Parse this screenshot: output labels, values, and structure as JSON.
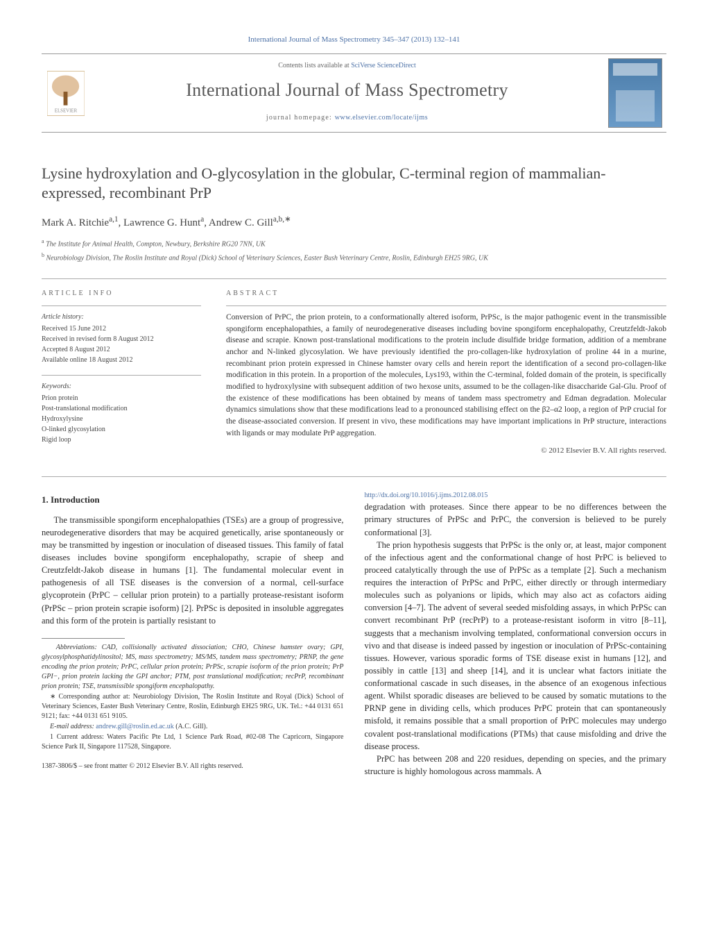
{
  "top_citation": "International Journal of Mass Spectrometry 345–347 (2013) 132–141",
  "header": {
    "contents_prefix": "Contents lists available at ",
    "contents_link": "SciVerse ScienceDirect",
    "journal": "International Journal of Mass Spectrometry",
    "homepage_prefix": "journal homepage: ",
    "homepage_url": "www.elsevier.com/locate/ijms"
  },
  "title": "Lysine hydroxylation and O-glycosylation in the globular, C-terminal region of mammalian-expressed, recombinant PrP",
  "authors_html": "Mark A. Ritchie<sup>a,1</sup>, Lawrence G. Hunt<sup>a</sup>, Andrew C. Gill<sup>a,b,∗</sup>",
  "affiliations": [
    "a The Institute for Animal Health, Compton, Newbury, Berkshire RG20 7NN, UK",
    "b Neurobiology Division, The Roslin Institute and Royal (Dick) School of Veterinary Sciences, Easter Bush Veterinary Centre, Roslin, Edinburgh EH25 9RG, UK"
  ],
  "article_info_label": "ARTICLE INFO",
  "abstract_label": "ABSTRACT",
  "history": {
    "head": "Article history:",
    "lines": [
      "Received 15 June 2012",
      "Received in revised form 8 August 2012",
      "Accepted 8 August 2012",
      "Available online 18 August 2012"
    ]
  },
  "keywords": {
    "head": "Keywords:",
    "items": [
      "Prion protein",
      "Post-translational modification",
      "Hydroxylysine",
      "O-linked glycosylation",
      "Rigid loop"
    ]
  },
  "abstract": "Conversion of PrPC, the prion protein, to a conformationally altered isoform, PrPSc, is the major pathogenic event in the transmissible spongiform encephalopathies, a family of neurodegenerative diseases including bovine spongiform encephalopathy, Creutzfeldt-Jakob disease and scrapie. Known post-translational modifications to the protein include disulfide bridge formation, addition of a membrane anchor and N-linked glycosylation. We have previously identified the pro-collagen-like hydroxylation of proline 44 in a murine, recombinant prion protein expressed in Chinese hamster ovary cells and herein report the identification of a second pro-collagen-like modification in this protein. In a proportion of the molecules, Lys193, within the C-terminal, folded domain of the protein, is specifically modified to hydroxylysine with subsequent addition of two hexose units, assumed to be the collagen-like disaccharide Gal-Glu. Proof of the existence of these modifications has been obtained by means of tandem mass spectrometry and Edman degradation. Molecular dynamics simulations show that these modifications lead to a pronounced stabilising effect on the β2–α2 loop, a region of PrP crucial for the disease-associated conversion. If present in vivo, these modifications may have important implications in PrP structure, interactions with ligands or may modulate PrP aggregation.",
  "copyright": "© 2012 Elsevier B.V. All rights reserved.",
  "section1_head": "1. Introduction",
  "body": {
    "p1": "The transmissible spongiform encephalopathies (TSEs) are a group of progressive, neurodegenerative disorders that may be acquired genetically, arise spontaneously or may be transmitted by ingestion or inoculation of diseased tissues. This family of fatal diseases includes bovine spongiform encephalopathy, scrapie of sheep and Creutzfeldt-Jakob disease in humans [1]. The fundamental molecular event in pathogenesis of all TSE diseases is the conversion of a normal, cell-surface glycoprotein (PrPC – cellular prion protein) to a partially protease-resistant isoform (PrPSc – prion protein scrapie isoform) [2]. PrPSc is deposited in insoluble aggregates and this form of the protein is partially resistant to",
    "p2": "degradation with proteases. Since there appear to be no differences between the primary structures of PrPSc and PrPC, the conversion is believed to be purely conformational [3].",
    "p3": "The prion hypothesis suggests that PrPSc is the only or, at least, major component of the infectious agent and the conformational change of host PrPC is believed to proceed catalytically through the use of PrPSc as a template [2]. Such a mechanism requires the interaction of PrPSc and PrPC, either directly or through intermediary molecules such as polyanions or lipids, which may also act as cofactors aiding conversion [4–7]. The advent of several seeded misfolding assays, in which PrPSc can convert recombinant PrP (recPrP) to a protease-resistant isoform in vitro [8–11], suggests that a mechanism involving templated, conformational conversion occurs in vivo and that disease is indeed passed by ingestion or inoculation of PrPSc-containing tissues. However, various sporadic forms of TSE disease exist in humans [12], and possibly in cattle [13] and sheep [14], and it is unclear what factors initiate the conformational cascade in such diseases, in the absence of an exogenous infectious agent. Whilst sporadic diseases are believed to be caused by somatic mutations to the PRNP gene in dividing cells, which produces PrPC protein that can spontaneously misfold, it remains possible that a small proportion of PrPC molecules may undergo covalent post-translational modifications (PTMs) that cause misfolding and drive the disease process.",
    "p4": "PrPC has between 208 and 220 residues, depending on species, and the primary structure is highly homologous across mammals. A"
  },
  "footnotes": {
    "abbrev": "Abbreviations: CAD, collisionally activated dissociation; CHO, Chinese hamster ovary; GPI, glycosylphosphatidylinositol; MS, mass spectrometry; MS/MS, tandem mass spectrometry; PRNP, the gene encoding the prion protein; PrPC, cellular prion protein; PrPSc, scrapie isoform of the prion protein; PrP GPI−, prion protein lacking the GPI anchor; PTM, post translational modification; recPrP, recombinant prion protein; TSE, transmissible spongiform encephalopathy.",
    "corr": "∗ Corresponding author at: Neurobiology Division, The Roslin Institute and Royal (Dick) School of Veterinary Sciences, Easter Bush Veterinary Centre, Roslin, Edinburgh EH25 9RG, UK. Tel.: +44 0131 651 9121; fax: +44 0131 651 9105.",
    "email_label": "E-mail address: ",
    "email": "andrew.gill@roslin.ed.ac.uk",
    "email_suffix": " (A.C. Gill).",
    "addr1": "1 Current address: Waters Pacific Pte Ltd, 1 Science Park Road, #02-08 The Capricorn, Singapore Science Park II, Singapore 117528, Singapore."
  },
  "footer": {
    "line1": "1387-3806/$ – see front matter © 2012 Elsevier B.V. All rights reserved.",
    "doi": "http://dx.doi.org/10.1016/j.ijms.2012.08.015"
  },
  "colors": {
    "link": "#4a6fa5",
    "text": "#333333",
    "rule": "#999999"
  }
}
